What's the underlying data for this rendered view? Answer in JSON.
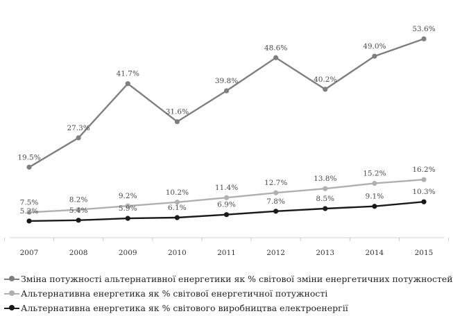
{
  "chart_data": {
    "type": "line",
    "title": "",
    "xlabel": "",
    "ylabel": "",
    "categories": [
      "2007",
      "2008",
      "2009",
      "2010",
      "2011",
      "2012",
      "2013",
      "2014",
      "2015"
    ],
    "ylim": [
      0,
      60
    ],
    "grid": false,
    "legend_position": "bottom",
    "series": [
      {
        "name": "Зміна потужності альтернативної енергетики як % світової зміни енергетичних потужностей",
        "values": [
          19.5,
          27.3,
          41.7,
          31.6,
          39.8,
          48.6,
          40.2,
          49.0,
          53.6
        ],
        "labels": [
          "19.5%",
          "27.3%",
          "41.7%",
          "31.6%",
          "39.8%",
          "48.6%",
          "40.2%",
          "49.0%",
          "53.6%"
        ],
        "color": "#7f7f7f"
      },
      {
        "name": "Альтернативна енергетика як % світової енергетичної потужності",
        "values": [
          7.5,
          8.2,
          9.2,
          10.2,
          11.4,
          12.7,
          13.8,
          15.2,
          16.2
        ],
        "labels": [
          "7.5%",
          "8.2%",
          "9.2%",
          "10.2%",
          "11.4%",
          "12.7%",
          "13.8%",
          "15.2%",
          "16.2%"
        ],
        "color": "#b0b0b0"
      },
      {
        "name": "Альтернативна енергетика як % світового виробництва електроенергії",
        "values": [
          5.2,
          5.4,
          5.9,
          6.1,
          6.9,
          7.8,
          8.5,
          9.1,
          10.3
        ],
        "labels": [
          "5.2%",
          "5.4%",
          "5.9%",
          "6.1%",
          "6.9%",
          "7.8%",
          "8.5%",
          "9.1%",
          "10.3%"
        ],
        "color": "#1a1a1a"
      }
    ]
  }
}
